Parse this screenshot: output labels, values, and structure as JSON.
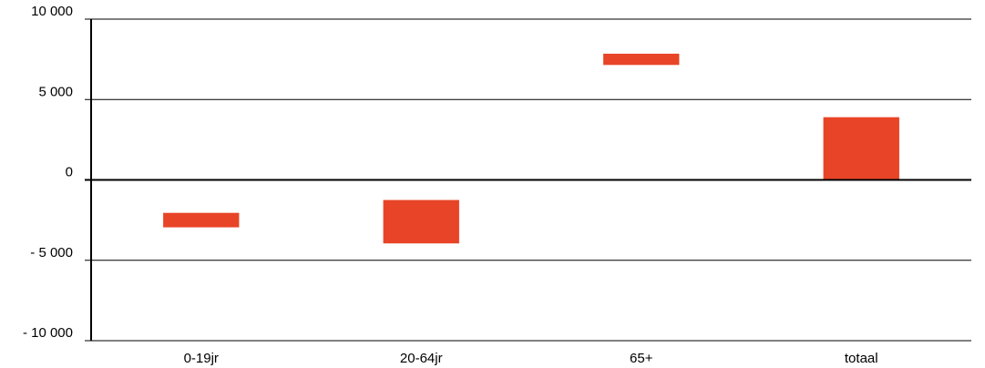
{
  "chart_data": {
    "type": "bar",
    "subtype": "floating",
    "categories": [
      "0-19jr",
      "20-64jr",
      "65+",
      "totaal"
    ],
    "series": [
      {
        "ranges": [
          [
            -2950,
            -2050
          ],
          [
            -3950,
            -1250
          ],
          [
            7150,
            7850
          ],
          [
            0,
            3900
          ]
        ]
      }
    ],
    "ylim": [
      -10000,
      10000
    ],
    "yticks": [
      10000,
      5000,
      0,
      -5000,
      -10000
    ],
    "ytick_labels": [
      "10 000",
      "5 000",
      "0",
      "- 5 000",
      "- 10 000"
    ],
    "grid": true,
    "colors": {
      "bar": "#e84427",
      "grid": "#000000"
    }
  }
}
